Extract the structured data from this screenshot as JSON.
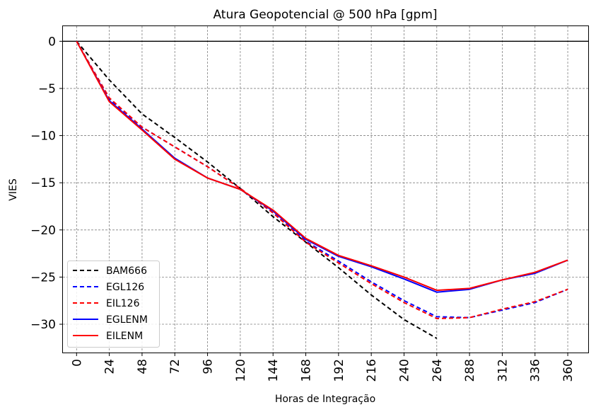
{
  "chart_data": {
    "type": "line",
    "title": "Atura Geopotencial @ 500 hPa [gpm]",
    "xlabel": "Horas de Integração",
    "ylabel": "VIES",
    "xlim": [
      -10,
      375
    ],
    "ylim": [
      -33,
      1.6
    ],
    "x_ticks": [
      0,
      24,
      48,
      72,
      96,
      120,
      144,
      168,
      192,
      216,
      240,
      264,
      288,
      312,
      336,
      360
    ],
    "y_ticks": [
      0,
      -5,
      -10,
      -15,
      -20,
      -25,
      -30
    ],
    "y_tick_labels": [
      "0",
      "−5",
      "−10",
      "−15",
      "−20",
      "−25",
      "−30"
    ],
    "grid": true,
    "zero_line": 0,
    "legend_position": "lower-left",
    "series": [
      {
        "name": "BAM666",
        "color": "#000000",
        "style": "dashed",
        "x": [
          0,
          24,
          48,
          72,
          96,
          120,
          144,
          168,
          192,
          216,
          240,
          264
        ],
        "values": [
          0,
          -4.1,
          -7.7,
          -10.2,
          -12.8,
          -15.6,
          -18.6,
          -21.3,
          -24.0,
          -26.9,
          -29.5,
          -31.5
        ]
      },
      {
        "name": "EGL126",
        "color": "#0000ff",
        "style": "dashed",
        "x": [
          0,
          24,
          48,
          72,
          96,
          120,
          144,
          168,
          192,
          216,
          240,
          264,
          288,
          312,
          336,
          360
        ],
        "values": [
          0,
          -6.1,
          -9.1,
          -11.2,
          -13.3,
          -15.6,
          -18.2,
          -21.2,
          -23.3,
          -25.5,
          -27.5,
          -29.2,
          -29.3,
          -28.5,
          -27.7,
          -26.3
        ]
      },
      {
        "name": "EIL126",
        "color": "#ff0000",
        "style": "dashed",
        "x": [
          0,
          24,
          48,
          72,
          96,
          120,
          144,
          168,
          192,
          216,
          240,
          264,
          288,
          312,
          336,
          360
        ],
        "values": [
          0,
          -6.0,
          -9.1,
          -11.2,
          -13.3,
          -15.6,
          -18.2,
          -21.3,
          -23.5,
          -25.7,
          -27.7,
          -29.4,
          -29.3,
          -28.4,
          -27.6,
          -26.3
        ]
      },
      {
        "name": "EGLENM",
        "color": "#0000ff",
        "style": "solid",
        "x": [
          0,
          24,
          48,
          72,
          96,
          120,
          144,
          168,
          192,
          216,
          240,
          264,
          288,
          312,
          336,
          360
        ],
        "values": [
          0,
          -6.3,
          -9.3,
          -12.4,
          -14.5,
          -15.7,
          -18.0,
          -21.0,
          -22.8,
          -23.9,
          -25.2,
          -26.6,
          -26.3,
          -25.3,
          -24.6,
          -23.2
        ]
      },
      {
        "name": "EILENM",
        "color": "#ff0000",
        "style": "solid",
        "x": [
          0,
          24,
          48,
          72,
          96,
          120,
          144,
          168,
          192,
          216,
          240,
          264,
          288,
          312,
          336,
          360
        ],
        "values": [
          0,
          -6.4,
          -9.4,
          -12.5,
          -14.5,
          -15.7,
          -17.9,
          -20.9,
          -22.7,
          -23.8,
          -25.0,
          -26.4,
          -26.2,
          -25.3,
          -24.5,
          -23.2
        ]
      }
    ]
  }
}
